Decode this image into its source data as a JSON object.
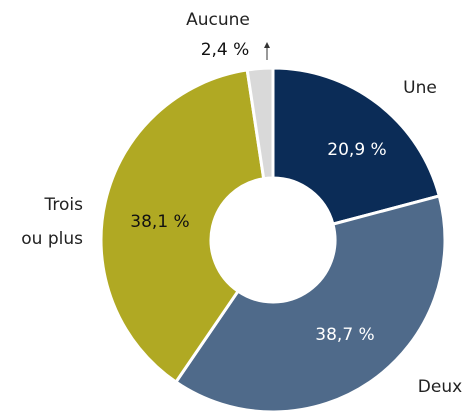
{
  "chart_data": {
    "type": "donut",
    "categories": [
      "Une",
      "Deux",
      "Trois ou plus",
      "Aucune"
    ],
    "values": [
      20.9,
      38.7,
      38.1,
      2.4
    ],
    "value_labels": [
      "20,9 %",
      "38,7 %",
      "38,1 %",
      "2,4 %"
    ],
    "colors": [
      "#0b2c57",
      "#4f6a8a",
      "#b0a923",
      "#d9d9d9"
    ]
  }
}
